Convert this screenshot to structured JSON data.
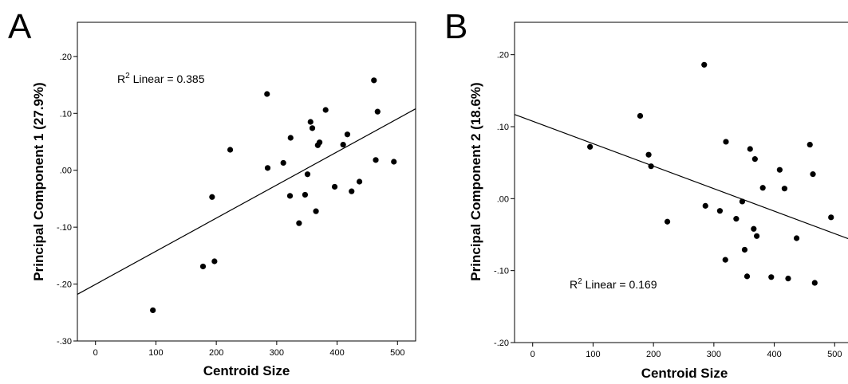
{
  "chart_data": [
    {
      "type": "scatter",
      "panel_label": "A",
      "xlabel": "Centroid Size",
      "ylabel": "Principal Component 1 (27.9%)",
      "xlim": [
        -30,
        530
      ],
      "ylim": [
        -0.3,
        0.26
      ],
      "x_ticks": [
        "0",
        "100",
        "200",
        "300",
        "400",
        "500"
      ],
      "x_tick_values": [
        0,
        100,
        200,
        300,
        400,
        500
      ],
      "y_ticks": [
        ".20",
        ".10",
        ".00",
        "-.10",
        "-.20",
        "-.30"
      ],
      "y_tick_values": [
        0.2,
        0.1,
        0.0,
        -0.1,
        -0.2,
        -0.3
      ],
      "grid": false,
      "annotation": {
        "prefix": "R",
        "sup": "2",
        "suffix": " Linear = 0.385"
      },
      "fit_line": {
        "x": [
          -30,
          530
        ],
        "y": [
          -0.218,
          0.108
        ]
      },
      "points": [
        {
          "x": 95,
          "y": -0.246
        },
        {
          "x": 178,
          "y": -0.169
        },
        {
          "x": 193,
          "y": -0.047
        },
        {
          "x": 197,
          "y": -0.16
        },
        {
          "x": 223,
          "y": 0.036
        },
        {
          "x": 284,
          "y": 0.134
        },
        {
          "x": 285,
          "y": 0.004
        },
        {
          "x": 311,
          "y": 0.013
        },
        {
          "x": 322,
          "y": -0.045
        },
        {
          "x": 323,
          "y": 0.057
        },
        {
          "x": 337,
          "y": -0.093
        },
        {
          "x": 347,
          "y": -0.043
        },
        {
          "x": 351,
          "y": -0.007
        },
        {
          "x": 356,
          "y": 0.085
        },
        {
          "x": 359,
          "y": 0.074
        },
        {
          "x": 365,
          "y": -0.072
        },
        {
          "x": 368,
          "y": 0.044
        },
        {
          "x": 371,
          "y": 0.049
        },
        {
          "x": 381,
          "y": 0.106
        },
        {
          "x": 396,
          "y": -0.029
        },
        {
          "x": 410,
          "y": 0.045
        },
        {
          "x": 417,
          "y": 0.063
        },
        {
          "x": 424,
          "y": -0.037
        },
        {
          "x": 437,
          "y": -0.02
        },
        {
          "x": 461,
          "y": 0.158
        },
        {
          "x": 464,
          "y": 0.018
        },
        {
          "x": 467,
          "y": 0.103
        },
        {
          "x": 494,
          "y": 0.015
        }
      ]
    },
    {
      "type": "scatter",
      "panel_label": "B",
      "xlabel": "Centroid Size",
      "ylabel": "Principal Component 2 (18.6%)",
      "xlim": [
        -30,
        530
      ],
      "ylim": [
        -0.2,
        0.245
      ],
      "x_ticks": [
        "0",
        "100",
        "200",
        "300",
        "400",
        "500"
      ],
      "x_tick_values": [
        0,
        100,
        200,
        300,
        400,
        500
      ],
      "y_ticks": [
        ".20",
        ".10",
        ".00",
        "-.10",
        "-.20"
      ],
      "y_tick_values": [
        0.2,
        0.1,
        0.0,
        -0.1,
        -0.2
      ],
      "grid": false,
      "annotation": {
        "prefix": "R",
        "sup": "2",
        "suffix": " Linear = 0.169"
      },
      "fit_line": {
        "x": [
          -30,
          530
        ],
        "y": [
          0.117,
          -0.058
        ]
      },
      "points": [
        {
          "x": 95,
          "y": 0.072
        },
        {
          "x": 178,
          "y": 0.115
        },
        {
          "x": 192,
          "y": 0.061
        },
        {
          "x": 196,
          "y": 0.045
        },
        {
          "x": 223,
          "y": -0.032
        },
        {
          "x": 284,
          "y": 0.186
        },
        {
          "x": 286,
          "y": -0.01
        },
        {
          "x": 310,
          "y": -0.017
        },
        {
          "x": 319,
          "y": -0.085
        },
        {
          "x": 320,
          "y": 0.079
        },
        {
          "x": 337,
          "y": -0.028
        },
        {
          "x": 347,
          "y": -0.004
        },
        {
          "x": 351,
          "y": -0.071
        },
        {
          "x": 355,
          "y": -0.108
        },
        {
          "x": 360,
          "y": 0.069
        },
        {
          "x": 366,
          "y": -0.042
        },
        {
          "x": 368,
          "y": 0.055
        },
        {
          "x": 371,
          "y": -0.052
        },
        {
          "x": 381,
          "y": 0.015
        },
        {
          "x": 395,
          "y": -0.109
        },
        {
          "x": 409,
          "y": 0.04
        },
        {
          "x": 417,
          "y": 0.014
        },
        {
          "x": 423,
          "y": -0.111
        },
        {
          "x": 437,
          "y": -0.055
        },
        {
          "x": 459,
          "y": 0.075
        },
        {
          "x": 464,
          "y": 0.034
        },
        {
          "x": 467,
          "y": -0.117
        },
        {
          "x": 494,
          "y": -0.026
        }
      ]
    }
  ]
}
